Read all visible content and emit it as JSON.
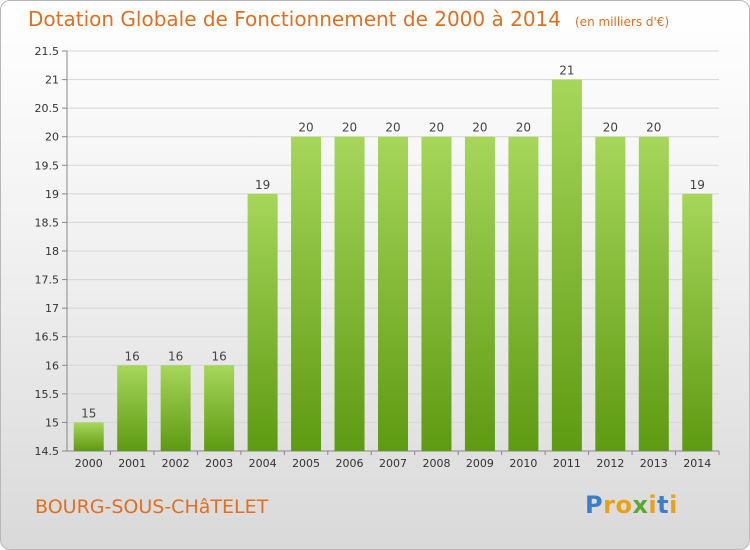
{
  "header": {
    "title": "Dotation Globale de Fonctionnement de 2000 à 2014",
    "unit": "(en milliers d'€)"
  },
  "footer": {
    "commune": "BOURG-SOUS-CHâTELET",
    "logo": "Proxiti"
  },
  "colors": {
    "accent": "#e07020",
    "bar_top": "#a6d65a",
    "bar_bottom": "#5e9a12",
    "logo_letters": [
      "#3a7fc8",
      "#e8a21a",
      "#e8a21a",
      "#5aa832",
      "#e8a21a",
      "#3a7fc8",
      "#e8a21a"
    ]
  },
  "chart_data": {
    "type": "bar",
    "title": "Dotation Globale de Fonctionnement de 2000 à 2014",
    "subtitle": "(en milliers d'€)",
    "categories": [
      "2000",
      "2001",
      "2002",
      "2003",
      "2004",
      "2005",
      "2006",
      "2007",
      "2008",
      "2009",
      "2010",
      "2011",
      "2012",
      "2013",
      "2014"
    ],
    "values": [
      15,
      16,
      16,
      16,
      19,
      20,
      20,
      20,
      20,
      20,
      20,
      21,
      20,
      20,
      19
    ],
    "labels": [
      "15",
      "16",
      "16",
      "16",
      "19",
      "20",
      "20",
      "20",
      "20",
      "20",
      "20",
      "21",
      "20",
      "20",
      "19"
    ],
    "ylim": [
      14.5,
      21.5
    ],
    "yticks": [
      14.5,
      15,
      15.5,
      16,
      16.5,
      17,
      17.5,
      18,
      18.5,
      19,
      19.5,
      20,
      20.5,
      21,
      21.5
    ],
    "ytick_labels": [
      "14.5",
      "15",
      "15.5",
      "16",
      "16.5",
      "17",
      "17.5",
      "18",
      "18.5",
      "19",
      "19.5",
      "20",
      "20.5",
      "21",
      "21.5"
    ],
    "grid": true
  }
}
